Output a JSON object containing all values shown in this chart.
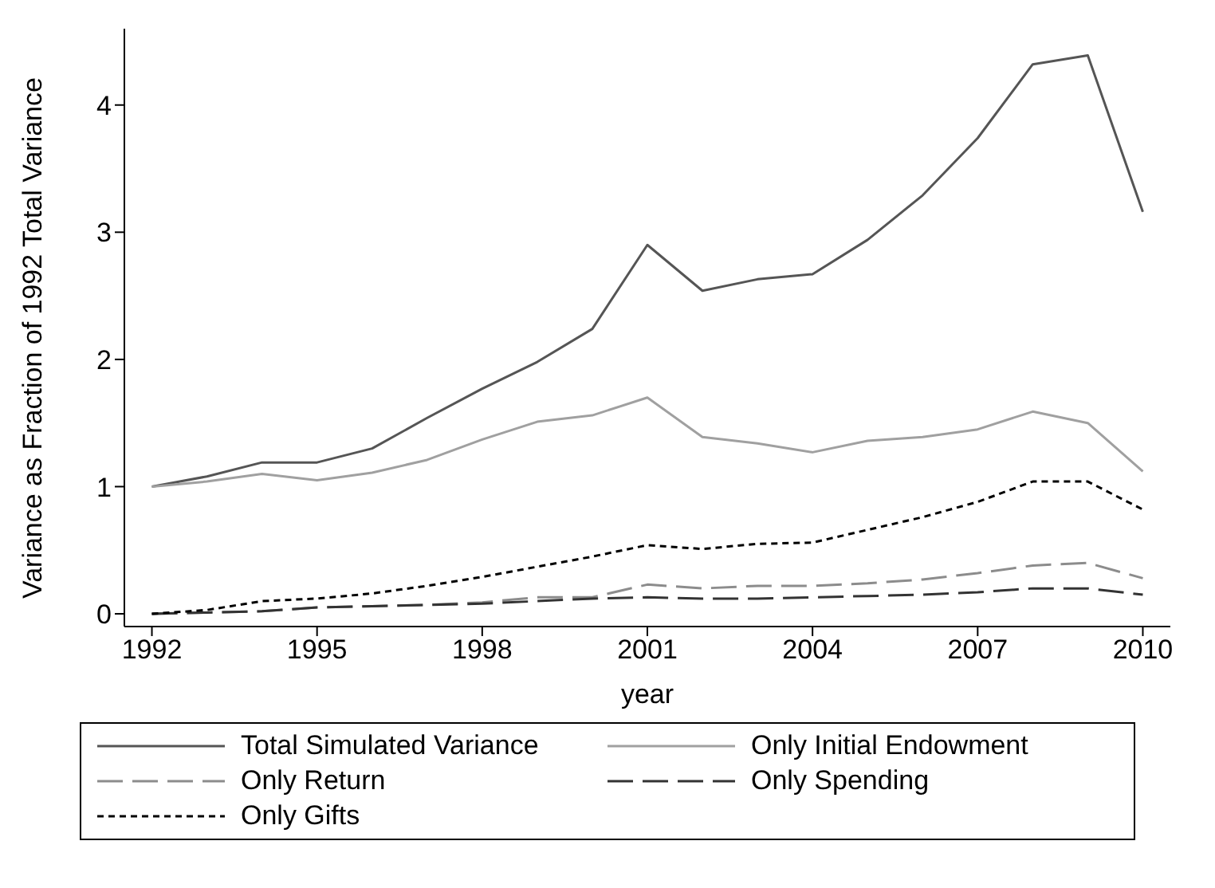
{
  "chart_data": {
    "type": "line",
    "xlabel": "year",
    "ylabel": "Variance as Fraction of 1992 Total Variance",
    "x": [
      1992,
      1993,
      1994,
      1995,
      1996,
      1997,
      1998,
      1999,
      2000,
      2001,
      2002,
      2003,
      2004,
      2005,
      2006,
      2007,
      2008,
      2009,
      2010
    ],
    "xlim": [
      1991.5,
      2010.5
    ],
    "xticks": [
      1992,
      1995,
      1998,
      2001,
      2004,
      2007,
      2010
    ],
    "ylim": [
      -0.1,
      4.6
    ],
    "yticks": [
      0,
      1,
      2,
      3,
      4
    ],
    "grid": false,
    "legend": "bottom",
    "marker": "none",
    "series": [
      {
        "name": "Total Simulated Variance",
        "color": "#555555",
        "line_style": "solid",
        "values": [
          1.0,
          1.08,
          1.19,
          1.19,
          1.3,
          1.54,
          1.77,
          1.98,
          2.24,
          2.9,
          2.54,
          2.63,
          2.67,
          2.94,
          3.29,
          3.74,
          4.32,
          4.39,
          3.16
        ]
      },
      {
        "name": "Only Initial Endowment",
        "color": "#a0a0a0",
        "line_style": "solid",
        "values": [
          1.0,
          1.04,
          1.1,
          1.05,
          1.11,
          1.21,
          1.37,
          1.51,
          1.56,
          1.7,
          1.39,
          1.34,
          1.27,
          1.36,
          1.39,
          1.45,
          1.59,
          1.5,
          1.12
        ]
      },
      {
        "name": "Only Return",
        "color": "#8c8c8c",
        "line_style": "dashed",
        "values": [
          0,
          0.01,
          0.02,
          0.05,
          0.06,
          0.07,
          0.09,
          0.13,
          0.13,
          0.23,
          0.2,
          0.22,
          0.22,
          0.24,
          0.27,
          0.32,
          0.38,
          0.4,
          0.28
        ]
      },
      {
        "name": "Only Spending",
        "color": "#333333",
        "line_style": "dashed",
        "values": [
          0,
          0.01,
          0.02,
          0.05,
          0.06,
          0.07,
          0.08,
          0.1,
          0.12,
          0.13,
          0.12,
          0.12,
          0.13,
          0.14,
          0.15,
          0.17,
          0.2,
          0.2,
          0.15
        ]
      },
      {
        "name": "Only Gifts",
        "color": "#000000",
        "line_style": "dotted",
        "values": [
          0,
          0.03,
          0.1,
          0.12,
          0.16,
          0.22,
          0.29,
          0.37,
          0.45,
          0.54,
          0.51,
          0.55,
          0.56,
          0.66,
          0.76,
          0.88,
          1.04,
          1.04,
          0.82
        ]
      }
    ]
  }
}
